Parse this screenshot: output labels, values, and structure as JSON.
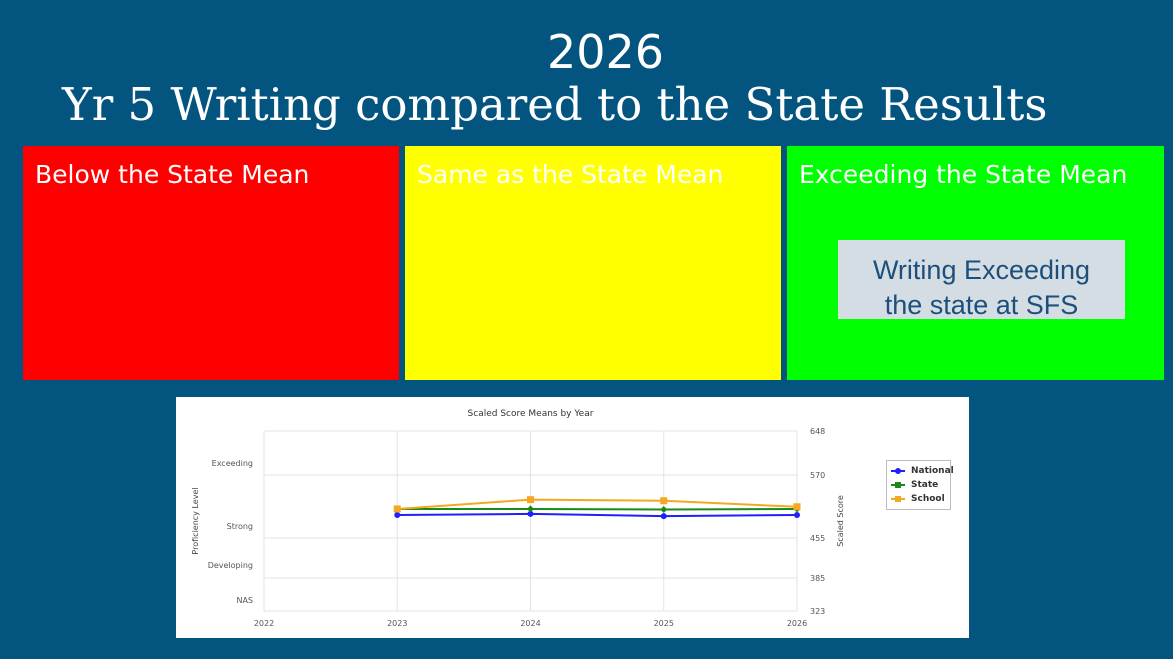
{
  "slide": {
    "year": "2026",
    "title": "Yr 5 Writing compared to the State Results"
  },
  "panels": {
    "below": {
      "label": "Below the State Mean",
      "color": "#ff0000"
    },
    "same": {
      "label": "Same as the State Mean",
      "color": "#ffff00"
    },
    "exceeding": {
      "label": "Exceeding the State Mean",
      "color": "#00ff00"
    }
  },
  "note": {
    "line1": "Writing Exceeding",
    "line2": "the state at SFS"
  },
  "chart_data": {
    "type": "line",
    "title": "Scaled Score Means by Year",
    "categories": [
      "2022",
      "2023",
      "2024",
      "2025",
      "2026"
    ],
    "ylabel_left": "Proficiency Level",
    "ylabel_right": "Scaled Score",
    "left_levels": [
      "Exceeding",
      "Strong",
      "Developing",
      "NAS"
    ],
    "right_ticks": [
      648,
      570,
      455,
      385,
      323
    ],
    "ylim": [
      323,
      648
    ],
    "grid": true,
    "legend_position": "right",
    "series": [
      {
        "name": "National",
        "color": "#1f1fff",
        "marker": "circle",
        "values": [
          null,
          497,
          499,
          495,
          497
        ]
      },
      {
        "name": "State",
        "color": "#1b8a1b",
        "marker": "diamond",
        "values": [
          null,
          508,
          508,
          507,
          508
        ]
      },
      {
        "name": "School",
        "color": "#f5a623",
        "marker": "square",
        "values": [
          null,
          508,
          525,
          523,
          512
        ]
      }
    ]
  }
}
